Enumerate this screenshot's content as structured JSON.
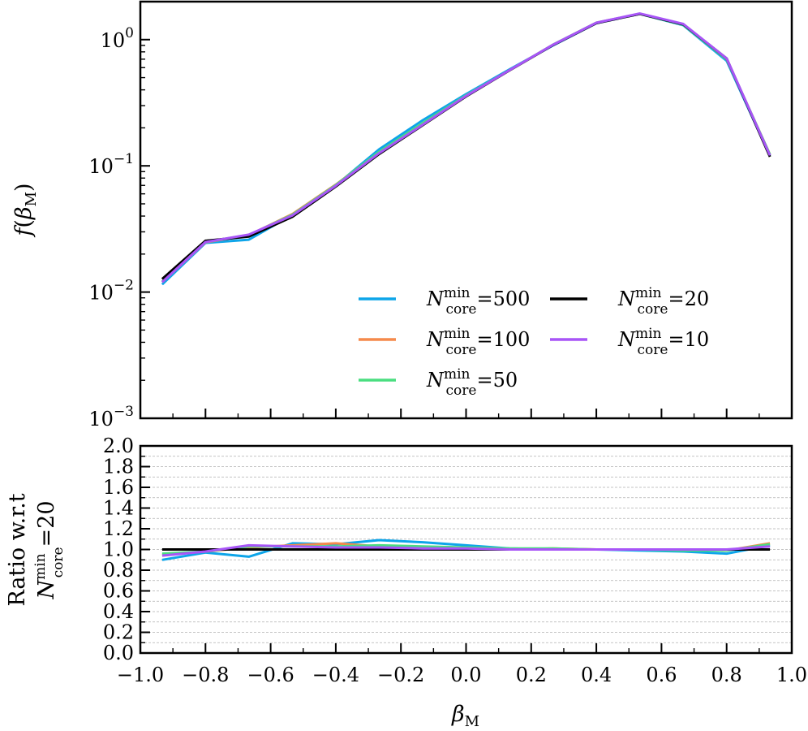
{
  "chart_data": [
    {
      "type": "line",
      "yscale": "log",
      "xlim": [
        -1.0,
        1.0
      ],
      "ylim": [
        0.001,
        2.0
      ],
      "ylabel": "f(βM)",
      "x": [
        -0.933,
        -0.8,
        -0.667,
        -0.533,
        -0.4,
        -0.267,
        -0.133,
        0.0,
        0.133,
        0.267,
        0.4,
        0.533,
        0.667,
        0.8,
        0.933
      ],
      "yticks": [
        {
          "value": 1.0,
          "base": "10",
          "exp": "0"
        },
        {
          "value": 0.1,
          "base": "10",
          "exp": "−1"
        },
        {
          "value": 0.01,
          "base": "10",
          "exp": "−2"
        },
        {
          "value": 0.001,
          "base": "10",
          "exp": "−3"
        }
      ],
      "series": [
        {
          "name": "N_core^min=500",
          "label_prefix": "N",
          "sup": "min",
          "sub": "core",
          "label_value": "500",
          "color": "#0ea5e9",
          "values": [
            0.0115,
            0.0245,
            0.026,
            0.041,
            0.07,
            0.135,
            0.23,
            0.37,
            0.58,
            0.9,
            1.35,
            1.6,
            1.3,
            0.68,
            0.12
          ]
        },
        {
          "name": "N_core^min=100",
          "label_prefix": "N",
          "sup": "min",
          "sub": "core",
          "label_value": "100",
          "color": "#f58a4c",
          "values": [
            0.012,
            0.0248,
            0.0282,
            0.0415,
            0.071,
            0.128,
            0.215,
            0.36,
            0.57,
            0.91,
            1.36,
            1.6,
            1.32,
            0.7,
            0.123
          ]
        },
        {
          "name": "N_core^min=50",
          "label_prefix": "N",
          "sup": "min",
          "sub": "core",
          "label_value": "50",
          "color": "#4ade80",
          "values": [
            0.0121,
            0.025,
            0.0283,
            0.041,
            0.0705,
            0.129,
            0.218,
            0.362,
            0.572,
            0.912,
            1.36,
            1.6,
            1.31,
            0.7,
            0.123
          ]
        },
        {
          "name": "N_core^min=20",
          "label_prefix": "N",
          "sup": "min",
          "sub": "core",
          "label_value": "20",
          "color": "#000000",
          "values": [
            0.0127,
            0.0255,
            0.0275,
            0.0395,
            0.0685,
            0.124,
            0.21,
            0.355,
            0.57,
            0.905,
            1.35,
            1.6,
            1.32,
            0.71,
            0.118
          ]
        },
        {
          "name": "N_core^min=10",
          "label_prefix": "N",
          "sup": "min",
          "sub": "core",
          "label_value": "10",
          "color": "#a855f7",
          "values": [
            0.012,
            0.0249,
            0.0285,
            0.0405,
            0.0695,
            0.126,
            0.212,
            0.358,
            0.572,
            0.91,
            1.36,
            1.61,
            1.33,
            0.71,
            0.121
          ]
        }
      ],
      "legend": "lower-right"
    },
    {
      "type": "line",
      "xlim": [
        -1.0,
        1.0
      ],
      "ylim": [
        0.0,
        2.0
      ],
      "xlabel": "βM",
      "ylabel_line1": "Ratio w.r.t",
      "ylabel_line2": "N_core^min=20",
      "ylabel_prefix": "N",
      "ylabel_sup": "min",
      "ylabel_sub": "core",
      "ylabel_value": "20",
      "grid": true,
      "x": [
        -0.933,
        -0.8,
        -0.667,
        -0.533,
        -0.4,
        -0.267,
        -0.133,
        0.0,
        0.133,
        0.267,
        0.4,
        0.533,
        0.667,
        0.8,
        0.933
      ],
      "xticks": [
        "−1.0",
        "−0.8",
        "−0.6",
        "−0.4",
        "−0.2",
        "0.0",
        "0.2",
        "0.4",
        "0.6",
        "0.8",
        "1.0"
      ],
      "xtick_values": [
        -1.0,
        -0.8,
        -0.6,
        -0.4,
        -0.2,
        0.0,
        0.2,
        0.4,
        0.6,
        0.8,
        1.0
      ],
      "yticks": [
        "0.0",
        "0.2",
        "0.4",
        "0.6",
        "0.8",
        "1.0",
        "1.2",
        "1.4",
        "1.6",
        "1.8",
        "2.0"
      ],
      "ytick_values": [
        0.0,
        0.2,
        0.4,
        0.6,
        0.8,
        1.0,
        1.2,
        1.4,
        1.6,
        1.8,
        2.0
      ],
      "series": [
        {
          "name": "N_core^min=500",
          "color": "#0ea5e9",
          "values": [
            0.9,
            0.97,
            0.93,
            1.06,
            1.05,
            1.09,
            1.07,
            1.04,
            1.01,
            1.0,
            1.0,
            0.99,
            0.98,
            0.96,
            1.04
          ]
        },
        {
          "name": "N_core^min=100",
          "color": "#f58a4c",
          "values": [
            0.95,
            0.98,
            1.02,
            1.04,
            1.06,
            1.03,
            1.02,
            1.01,
            1.0,
            1.01,
            1.0,
            1.0,
            1.0,
            0.99,
            1.06
          ]
        },
        {
          "name": "N_core^min=50",
          "color": "#4ade80",
          "values": [
            0.96,
            0.98,
            1.03,
            1.03,
            1.03,
            1.04,
            1.03,
            1.02,
            1.01,
            1.01,
            1.0,
            1.0,
            0.99,
            0.99,
            1.05
          ]
        },
        {
          "name": "N_core^min=20",
          "color": "#000000",
          "values": [
            1.0,
            1.0,
            1.0,
            1.0,
            1.0,
            1.0,
            1.0,
            1.0,
            1.0,
            1.0,
            1.0,
            1.0,
            1.0,
            1.0,
            1.0
          ]
        },
        {
          "name": "N_core^min=10",
          "color": "#a855f7",
          "values": [
            0.94,
            0.98,
            1.04,
            1.03,
            1.02,
            1.02,
            1.01,
            1.01,
            1.0,
            1.0,
            1.0,
            1.0,
            1.0,
            1.0,
            1.03
          ]
        }
      ]
    }
  ]
}
